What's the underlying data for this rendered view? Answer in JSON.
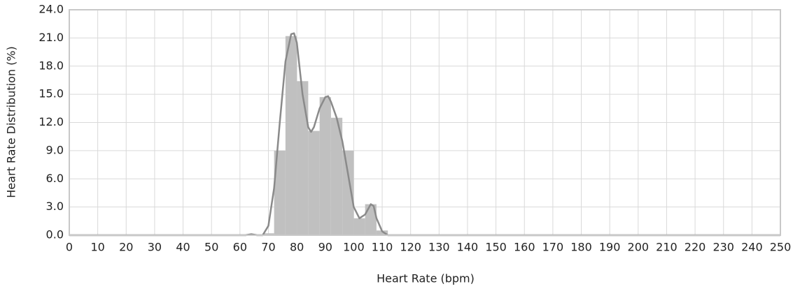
{
  "chart_data": {
    "type": "histogram",
    "xlabel": "Heart Rate (bpm)",
    "ylabel": "Heart Rate Distribution (%)",
    "bins": [
      68,
      72,
      76,
      80,
      84,
      88,
      92,
      96,
      100,
      104,
      108,
      112
    ],
    "values": [
      0.2,
      9.0,
      21.2,
      16.4,
      11.1,
      14.7,
      12.5,
      9.0,
      1.8,
      3.3,
      0.5
    ],
    "color": "#c0c0c0",
    "kde": {
      "color": "#8a8a8a",
      "x": [
        0,
        60,
        62,
        64,
        66,
        68,
        70,
        72,
        74,
        76,
        78,
        79,
        80,
        82,
        84,
        85,
        86,
        88,
        90,
        91,
        92,
        94,
        96,
        98,
        100,
        102,
        104,
        106,
        107,
        108,
        110,
        112,
        116,
        250
      ],
      "values": [
        0,
        0,
        0,
        0.1,
        0,
        0,
        1,
        5,
        12,
        18.5,
        21.4,
        21.5,
        20.5,
        15,
        11.5,
        11,
        11.5,
        13.5,
        14.7,
        14.8,
        14.2,
        12.5,
        10,
        6.5,
        3,
        1.8,
        2.2,
        3.3,
        3.1,
        1.8,
        0.4,
        0,
        0,
        0
      ]
    },
    "xlim": [
      0,
      250
    ],
    "ylim": [
      0,
      24
    ],
    "xticks": [
      0,
      10,
      20,
      30,
      40,
      50,
      60,
      70,
      80,
      90,
      100,
      110,
      120,
      130,
      140,
      150,
      160,
      170,
      180,
      190,
      200,
      210,
      220,
      230,
      240,
      250
    ],
    "yticks": [
      {
        "value": 0,
        "label": "0.0"
      },
      {
        "value": 3,
        "label": "3.0"
      },
      {
        "value": 6,
        "label": "6.0"
      },
      {
        "value": 9,
        "label": "9.0"
      },
      {
        "value": 12,
        "label": "12.0"
      },
      {
        "value": 15,
        "label": "15.0"
      },
      {
        "value": 18,
        "label": "18.0"
      },
      {
        "value": 21,
        "label": "21.0"
      },
      {
        "value": 24,
        "label": "24.0"
      }
    ],
    "grid": true
  }
}
